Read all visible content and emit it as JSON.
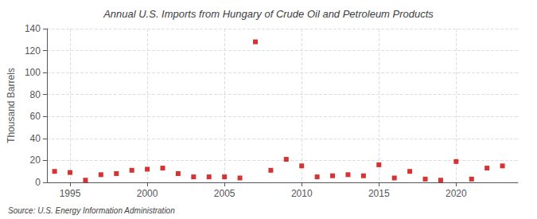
{
  "chart_data": {
    "type": "scatter",
    "title": "Annual U.S. Imports from Hungary of Crude Oil and Petroleum Products",
    "ylabel": "Thousand Barrels",
    "source": "Source: U.S. Energy Information Administration",
    "x": [
      1994,
      1995,
      1996,
      1997,
      1998,
      1999,
      2000,
      2001,
      2002,
      2003,
      2004,
      2005,
      2006,
      2007,
      2008,
      2009,
      2010,
      2011,
      2012,
      2013,
      2014,
      2015,
      2016,
      2017,
      2018,
      2019,
      2020,
      2021,
      2022,
      2023
    ],
    "values": [
      10,
      9,
      2,
      7,
      8,
      11,
      12,
      13,
      8,
      5,
      5,
      5,
      4,
      128,
      11,
      21,
      15,
      5,
      6,
      7,
      6,
      16,
      4,
      10,
      3,
      2,
      19,
      3,
      13,
      15
    ],
    "color": "#cc0000",
    "marker": "square",
    "xlim": [
      1993.5,
      2024
    ],
    "ylim": [
      0,
      140
    ],
    "xticks": [
      1995,
      2000,
      2005,
      2010,
      2015,
      2020
    ],
    "yticks": [
      0,
      20,
      40,
      60,
      80,
      100,
      120,
      140
    ],
    "grid": true
  }
}
